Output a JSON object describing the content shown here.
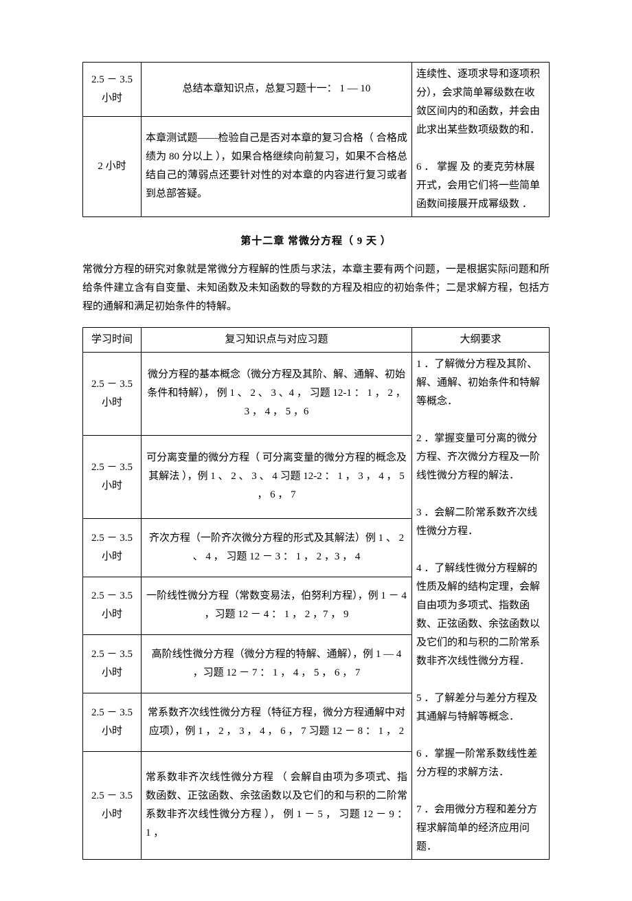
{
  "table1": {
    "rows": [
      {
        "time": "2.5 － 3.5 小时",
        "content": "总结本章知识点，总复习题十一： 1 — 10"
      },
      {
        "time": "2 小时",
        "content": "本章测试题——检验自己是否对本章的复习合格（ 合格成绩为 80 分以上 ），如果合格继续向前复习，如果不合格总结自己的薄弱点还要针对性的对本章的内容进行复习或者到总部答疑。"
      }
    ],
    "req": "连续性、逐项求导和逐项积分），会求简单幂级数在收敛区间内的和函数，并会由此求出某些数项级数的和．\n\n6 ． 掌握 及 的麦克劳林展开式，会用它们将一些简单函数间接展开成幂级数 ．"
  },
  "chapter": {
    "title": "第十二章 常微分方程（ 9 天 ）",
    "intro": "常微分方程的研究对象就是常微分方程解的性质与求法，本章主要有两个问题，一是根据实际问题和所给条件建立含有自变量、未知函数及未知函数的导数的方程及相应的初始条件；二是求解方程，包括方程的通解和满足初始条件的特解。"
  },
  "table2": {
    "headers": {
      "time": "学习时间",
      "content": "复习知识点与对应习题",
      "req": "大纲要求"
    },
    "rows": [
      {
        "time": "2.5 － 3.5 小时",
        "content": "微分方程的基本概念（微分方程及其阶、解、通解、初始条件和特解）， 例 1 、 2 、 3 、4 ， 习题 12-1 ： 1 ， 2 ， 3 ， 4 ， 5 ，6"
      },
      {
        "time": "2.5 － 3.5 小时",
        "content": "可分离变量的微分方程（ 可分离变量的微分方程的概念及其解法 ），例 1 、 2 、 3 、 4 习题 12-2 ： 1 ， 3 ， 4 ， 5 ， 6 ， 7"
      },
      {
        "time": "2.5 － 3.5 小时",
        "content": "齐次方程（一阶齐次微分方程的形式及其解法）例 1 、 2 、 4 ， 习题 12 － 3 ： 1 ， 2 ，3 ， 4"
      },
      {
        "time": "2.5 － 3.5 小时",
        "content": "一阶线性微分方程（常数变易法，伯努利方程），例 1 － 4 ，习题 12 － 4 ： 1 ， 2 ，7 ， 9"
      },
      {
        "time": "2.5 － 3.5 小时",
        "content": "高阶线性微分方程（微分方程的特解、通解），例 1 — 4 ，习题 12 － 7 ： 1 ， 4 ， 5 ， 6 ， 7"
      },
      {
        "time": "2.5 － 3.5 小时",
        "content": "常系数齐次线性微分方程（特征方程，微分方程通解中对应项），例 1 ， 2 ， 3 ， 4 ， 6 ， 7 习题 12 － 8 ： 1 ， 2"
      },
      {
        "time": "2.5 － 3.5 小时",
        "content": "常系数非齐次线性微分方程 （ 会解自由项为多项式、指数函数、正弦函数、余弦函数以及它们的和与积的二阶常系数非齐次线性微分方程 ）， 例 1 － 5 ， 习题 12 － 9 ： 1 ，"
      }
    ],
    "req": "1 ．了解微分方程及其阶、解、通解、初始条件和特解等概念．\n\n2 ．掌握变量可分离的微分方程、齐次微分方程及一阶线性微分方程的解法．\n\n3 ．会解二阶常系数齐次线性微分方程．\n\n4 ．了解线性微分方程解的性质及解的结构定理，会解自由项为多项式、指数函数、正弦函数、余弦函数以及它们的和与积的二阶常系数非齐次线性微分方程．\n\n5 ．了解差分与差分方程及其通解与特解等概念．\n\n6 ．掌握一阶常系数线性差分方程的求解方法．\n\n7 ．会用微分方程和差分方程求解简单的经济应用问题．"
  }
}
